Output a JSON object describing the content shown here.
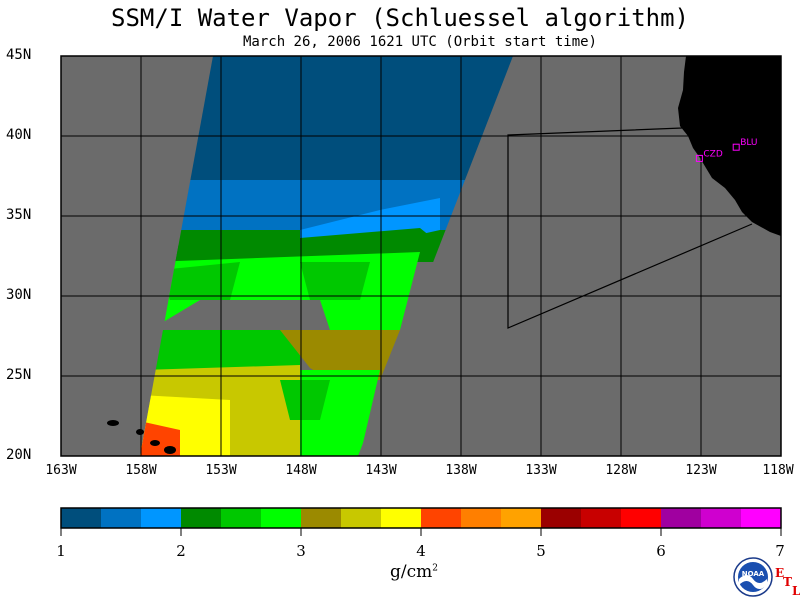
{
  "title": "SSM/I Water Vapor (Schluessel algorithm)",
  "subtitle": "March 26, 2006  1621 UTC  (Orbit start time)",
  "map": {
    "lon_range": [
      -163,
      -118
    ],
    "lat_range": [
      20,
      45
    ],
    "lat_labels": [
      "45N",
      "40N",
      "35N",
      "30N",
      "25N",
      "20N"
    ],
    "lon_labels": [
      "163W",
      "158W",
      "153W",
      "148W",
      "143W",
      "138W",
      "133W",
      "128W",
      "123W",
      "118W"
    ],
    "stations": [
      {
        "name": "CZD",
        "lon": -123.1,
        "lat": 38.6
      },
      {
        "name": "BLU",
        "lon": -120.8,
        "lat": 39.3
      }
    ],
    "colors": {
      "no_data": "#6b6b6b",
      "land": "#000000",
      "grid": "#000000",
      "station": "#ff00ff"
    }
  },
  "colorbar": {
    "colors": [
      "#004e7c",
      "#0072c2",
      "#0096ff",
      "#008a00",
      "#00c800",
      "#00ff00",
      "#9b8a00",
      "#c8c800",
      "#ffff00",
      "#ff4400",
      "#ff7f00",
      "#ffa200",
      "#9b0000",
      "#c80000",
      "#ff0000",
      "#a000a0",
      "#cf00cf",
      "#ff00ff"
    ],
    "tick_labels": [
      "1",
      "2",
      "3",
      "4",
      "5",
      "6",
      "7"
    ],
    "units": "g/cm",
    "units_sup": "2"
  },
  "logo": {
    "text": "NOAA",
    "etl_letters": [
      "E",
      "T",
      "L"
    ]
  }
}
